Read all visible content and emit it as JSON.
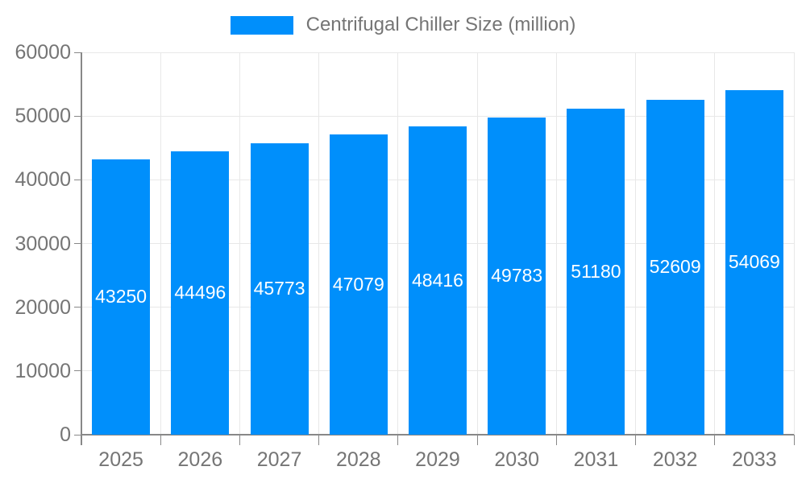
{
  "chart_data": {
    "type": "bar",
    "title": "Centrifugal Chiller Size (million)",
    "categories": [
      "2025",
      "2026",
      "2027",
      "2028",
      "2029",
      "2030",
      "2031",
      "2032",
      "2033"
    ],
    "values": [
      43250,
      44496,
      45773,
      47079,
      48416,
      49783,
      51180,
      52609,
      54069
    ],
    "series": [
      {
        "name": "Centrifugal Chiller Size (million)",
        "values": [
          43250,
          44496,
          45773,
          47079,
          48416,
          49783,
          51180,
          52609,
          54069
        ]
      }
    ],
    "xlabel": "",
    "ylabel": "",
    "ylim": [
      0,
      60000
    ],
    "yticks": [
      0,
      10000,
      20000,
      30000,
      40000,
      50000,
      60000
    ],
    "grid": true,
    "legend_position": "top",
    "value_label_position": "inside-center"
  },
  "colors": {
    "bar": "#008FFB",
    "axis_line": "#888888",
    "gridline": "#e8e8e8",
    "axis_text": "#757575",
    "value_label": "#ffffff",
    "background": "#ffffff"
  }
}
